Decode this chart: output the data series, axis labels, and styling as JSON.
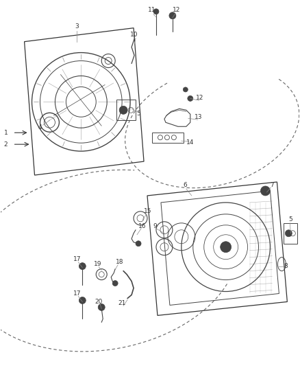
{
  "bg_color": "#ffffff",
  "fig_width": 4.38,
  "fig_height": 5.33,
  "dpi": 100,
  "part_color": "#444444",
  "line_color": "#333333",
  "dashed_color": "#555555",
  "text_color": "#333333",
  "font_size": 6.5
}
